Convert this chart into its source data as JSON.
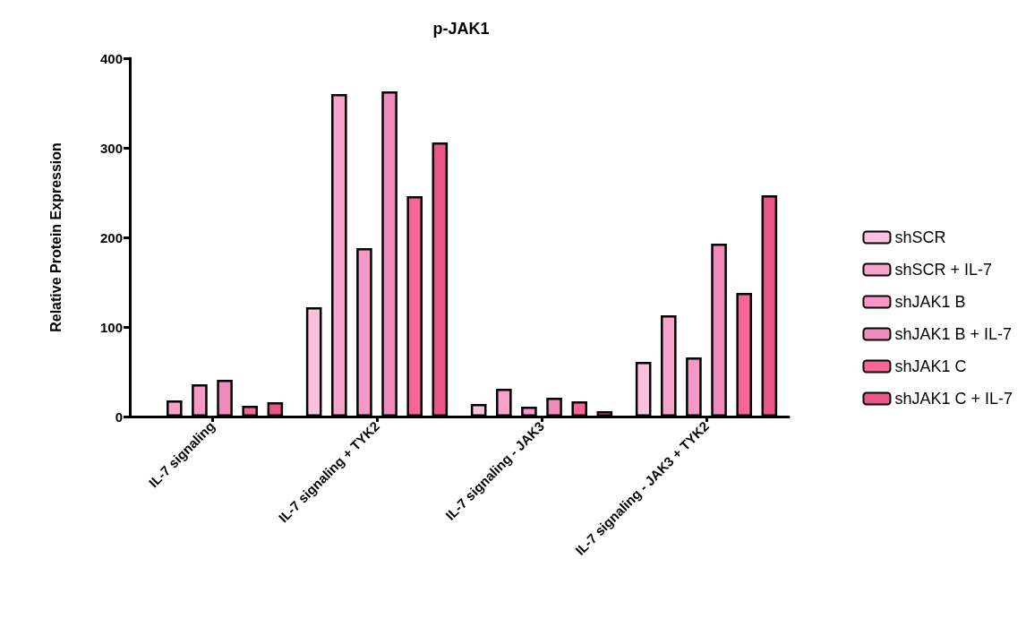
{
  "chart_data": {
    "type": "bar",
    "title": "p-JAK1",
    "ylabel": "Relative Protein Expression",
    "categories": [
      "IL-7 signaling",
      "IL-7 signaling + TYK2",
      "IL-7 signaling - JAK3",
      "IL-7 signaling - JAK3 + TYK2"
    ],
    "series": [
      {
        "name": "shSCR",
        "color": "#fdc0dd",
        "values": [
          null,
          122,
          14,
          61
        ]
      },
      {
        "name": "shSCR + IL-7",
        "color": "#f5a3ca",
        "values": [
          18,
          360,
          31,
          113
        ]
      },
      {
        "name": "shJAK1 B",
        "color": "#f898c8",
        "values": [
          36,
          188,
          11,
          66
        ]
      },
      {
        "name": "shJAK1 B + IL-7",
        "color": "#f08cbd",
        "values": [
          41,
          363,
          21,
          193
        ]
      },
      {
        "name": "shJAK1 C",
        "color": "#f76696",
        "values": [
          12,
          246,
          17,
          138
        ]
      },
      {
        "name": "shJAK1 C + IL-7",
        "color": "#ea5688",
        "values": [
          16,
          306,
          6,
          247
        ]
      }
    ],
    "ylim": [
      0,
      400
    ],
    "yticks": [
      0,
      100,
      200,
      300,
      400
    ],
    "grid": false,
    "legend": "right"
  }
}
